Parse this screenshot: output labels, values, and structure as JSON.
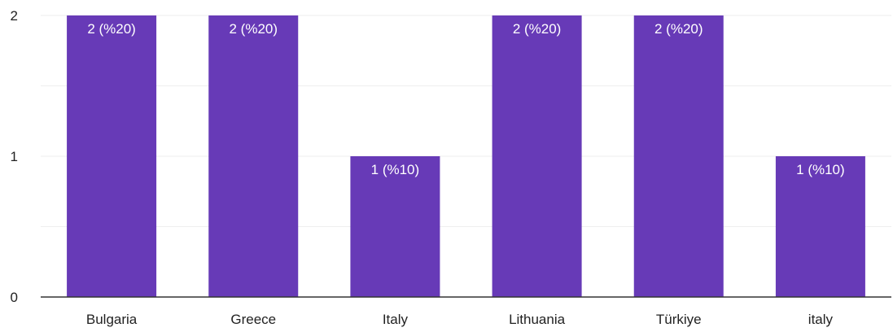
{
  "chart_data": {
    "type": "bar",
    "categories": [
      "Bulgaria",
      "Greece",
      "Italy",
      "Lithuania",
      "Türkiye",
      "italy"
    ],
    "values": [
      2,
      2,
      1,
      2,
      2,
      1
    ],
    "data_labels": [
      "2 (%20)",
      "2 (%20)",
      "1 (%10)",
      "2 (%20)",
      "2 (%20)",
      "1 (%10)"
    ],
    "y_ticks": [
      "0",
      "1",
      "2"
    ],
    "ylim": [
      0,
      2
    ],
    "title": "",
    "xlabel": "",
    "ylabel": "",
    "grid": true,
    "bar_color": "#673ab7",
    "grid_color": "#eeeeee",
    "axis_color": "#333333"
  }
}
